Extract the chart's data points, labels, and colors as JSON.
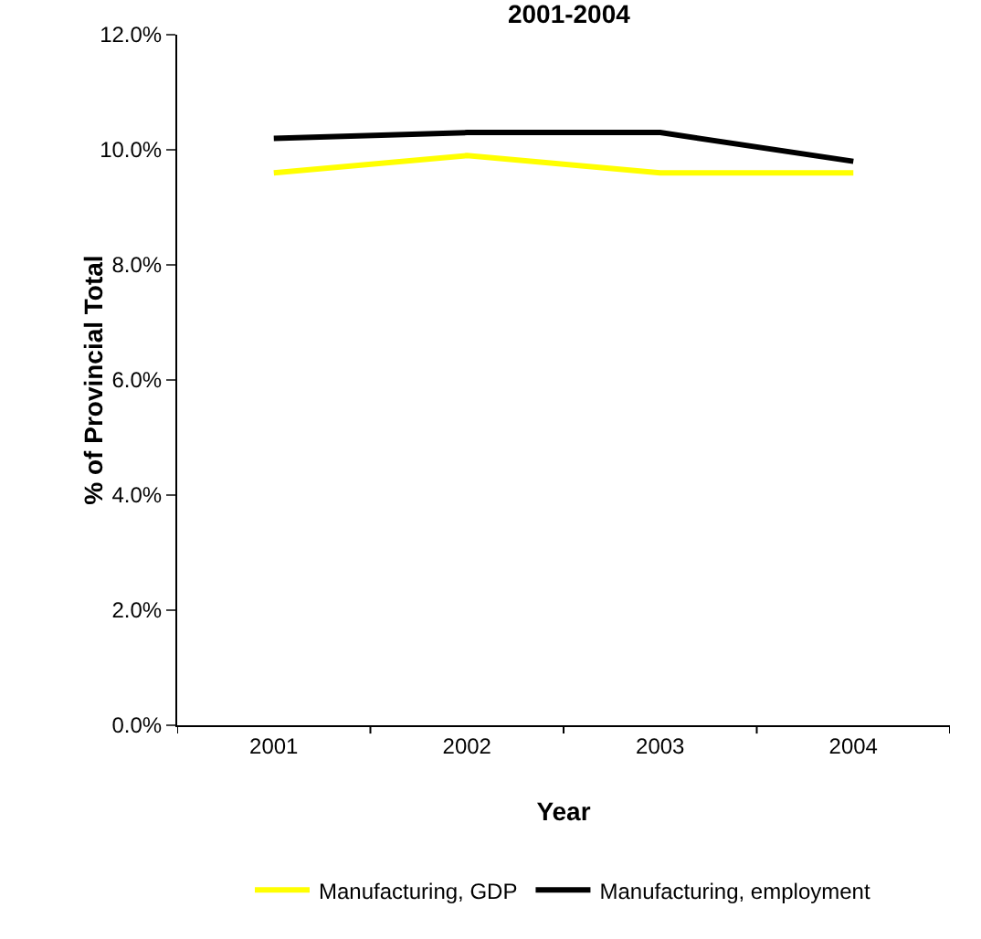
{
  "chart_data": {
    "type": "line",
    "title": "2001-2004",
    "xlabel": "Year",
    "ylabel": "% of Provincial Total",
    "categories": [
      "2001",
      "2002",
      "2003",
      "2004"
    ],
    "series": [
      {
        "name": "Manufacturing, GDP",
        "color": "#ffff00",
        "values": [
          9.6,
          9.9,
          9.6,
          9.6
        ]
      },
      {
        "name": "Manufacturing, employment",
        "color": "#000000",
        "values": [
          10.2,
          10.3,
          10.3,
          9.8
        ]
      }
    ],
    "ylim": [
      0,
      12
    ],
    "yticks": [
      {
        "value": 0,
        "label": "0.0%"
      },
      {
        "value": 2,
        "label": "2.0%"
      },
      {
        "value": 4,
        "label": "4.0%"
      },
      {
        "value": 6,
        "label": "6.0%"
      },
      {
        "value": 8,
        "label": "8.0%"
      },
      {
        "value": 10,
        "label": "10.0%"
      },
      {
        "value": 12,
        "label": "12.0%"
      }
    ],
    "grid": false,
    "legend": "bottom",
    "marker": "none",
    "line_style": "solid"
  }
}
